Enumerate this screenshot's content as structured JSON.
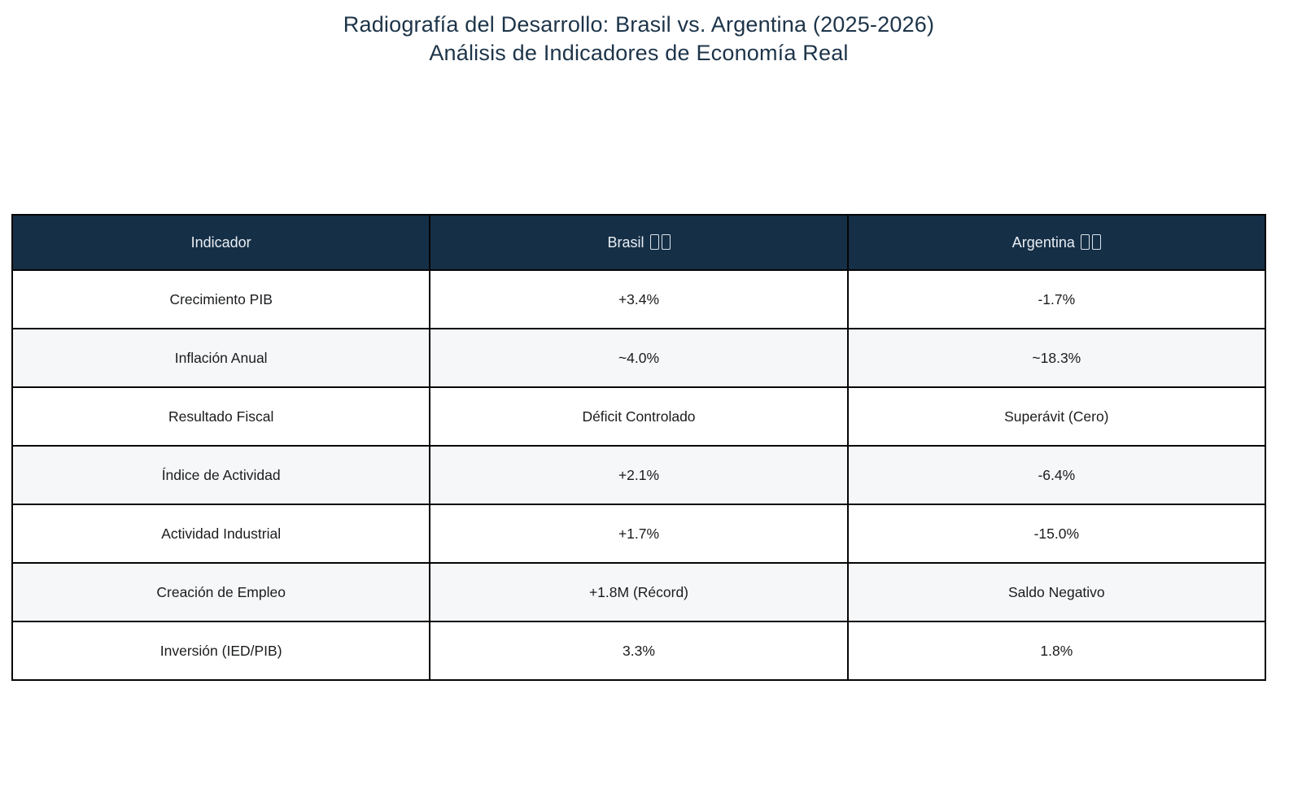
{
  "title": {
    "line1": "Radiografía del Desarrollo: Brasil vs. Argentina (2025-2026)",
    "line2": "Análisis de Indicadores de Economía Real"
  },
  "table": {
    "columns": [
      {
        "label": "Indicador",
        "flag_placeholder": false
      },
      {
        "label": "Brasil",
        "flag_placeholder": true,
        "flag_note": "missing-flag-glyph-boxes"
      },
      {
        "label": "Argentina",
        "flag_placeholder": true,
        "flag_note": "missing-flag-glyph-boxes"
      }
    ],
    "rows": [
      {
        "indicator": "Crecimiento PIB",
        "brasil": "+3.4%",
        "argentina": "-1.7%"
      },
      {
        "indicator": "Inflación Anual",
        "brasil": "~4.0%",
        "argentina": "~18.3%"
      },
      {
        "indicator": "Resultado Fiscal",
        "brasil": "Déficit Controlado",
        "argentina": "Superávit (Cero)"
      },
      {
        "indicator": "Índice de Actividad",
        "brasil": "+2.1%",
        "argentina": "-6.4%"
      },
      {
        "indicator": "Actividad Industrial",
        "brasil": "+1.7%",
        "argentina": "-15.0%"
      },
      {
        "indicator": "Creación de Empleo",
        "brasil": "+1.8M (Récord)",
        "argentina": "Saldo Negativo"
      },
      {
        "indicator": "Inversión (IED/PIB)",
        "brasil": "3.3%",
        "argentina": "1.8%"
      }
    ]
  },
  "colors": {
    "header_background": "#152f46",
    "header_text": "#e9eef3",
    "row_white": "#ffffff",
    "row_alternate": "#f6f7f9",
    "border": "#050505",
    "title_text": "#1d3449",
    "body_text": "#1b1c1e"
  },
  "chart_data": {
    "type": "table",
    "title": "Radiografía del Desarrollo: Brasil vs. Argentina (2025-2026)",
    "subtitle": "Análisis de Indicadores de Economía Real",
    "columns": [
      "Indicador",
      "Brasil",
      "Argentina"
    ],
    "rows": [
      [
        "Crecimiento PIB",
        "+3.4%",
        "-1.7%"
      ],
      [
        "Inflación Anual",
        "~4.0%",
        "~18.3%"
      ],
      [
        "Resultado Fiscal",
        "Déficit Controlado",
        "Superávit (Cero)"
      ],
      [
        "Índice de Actividad",
        "+2.1%",
        "-6.4%"
      ],
      [
        "Actividad Industrial",
        "+1.7%",
        "-15.0%"
      ],
      [
        "Creación de Empleo",
        "+1.8M (Récord)",
        "Saldo Negativo"
      ],
      [
        "Inversión (IED/PIB)",
        "3.3%",
        "1.8%"
      ]
    ],
    "layout_hints": {
      "header_style": "dark-navy, white text",
      "zebra_striping": true,
      "all_cells_center_aligned": true,
      "grid": "black 2px borders"
    }
  }
}
